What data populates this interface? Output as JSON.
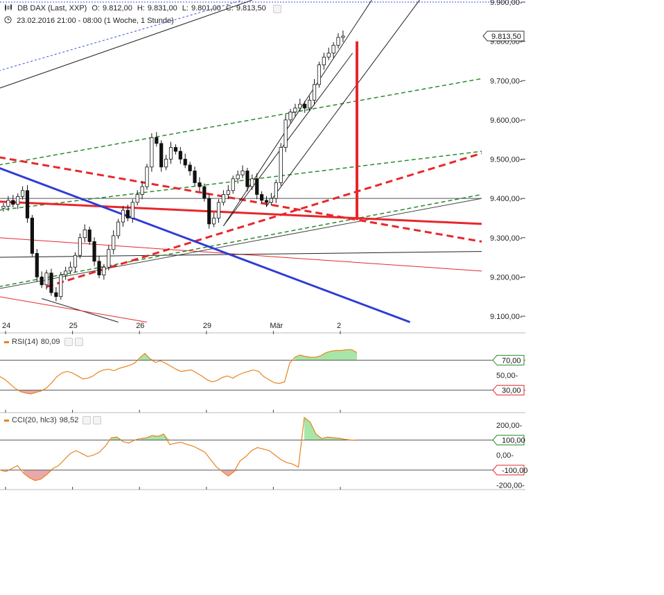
{
  "header": {
    "title": "DB DAX (Last, XXP)",
    "open_label": "O:",
    "open": "9.812,00",
    "high_label": "H:",
    "high": "9.831,00",
    "low_label": "L:",
    "low": "9.801,00",
    "close_label": "C:",
    "close": "9.813,50",
    "period": "23.02.2016 21:00 - 08:00 (1 Woche, 1 Stunde)"
  },
  "chart_data": [
    {
      "type": "candlestick",
      "title": "DB DAX (Last, XXP)",
      "ylim": [
        9080,
        9900
      ],
      "y_ticks": [
        "9.900,00",
        "9.800,00",
        "9.700,00",
        "9.600,00",
        "9.500,00",
        "9.400,00",
        "9.300,00",
        "9.200,00",
        "9.100,00"
      ],
      "y_tick_values": [
        9900,
        9800,
        9700,
        9600,
        9500,
        9400,
        9300,
        9200,
        9100
      ],
      "x_ticks": [
        "24",
        "25",
        "26",
        "29",
        "Mär",
        "2"
      ],
      "x_tick_bars": [
        0,
        14,
        28,
        42,
        56,
        70
      ],
      "last_price_label": "9.813,50",
      "last_price": 9813.5,
      "close_series": [
        9380,
        9395,
        9385,
        9405,
        9420,
        9350,
        9260,
        9200,
        9180,
        9210,
        9160,
        9150,
        9205,
        9215,
        9225,
        9255,
        9300,
        9320,
        9290,
        9240,
        9205,
        9225,
        9270,
        9305,
        9340,
        9370,
        9350,
        9390,
        9410,
        9430,
        9480,
        9555,
        9540,
        9480,
        9500,
        9530,
        9520,
        9500,
        9485,
        9470,
        9440,
        9430,
        9400,
        9335,
        9350,
        9390,
        9410,
        9420,
        9450,
        9460,
        9470,
        9430,
        9450,
        9410,
        9395,
        9390,
        9400,
        9440,
        9530,
        9600,
        9620,
        9630,
        9640,
        9630,
        9650,
        9690,
        9740,
        9760,
        9770,
        9790,
        9810,
        9813.5
      ],
      "grid": false,
      "legend": "none"
    },
    {
      "type": "line",
      "title": "RSI(14)",
      "current_value": "80,09",
      "ylim": [
        0,
        100
      ],
      "reference_levels": [
        "70,00",
        "50,00",
        "30,00"
      ],
      "reference_values": [
        70,
        50,
        30
      ],
      "values": [
        48,
        44,
        38,
        32,
        28,
        26,
        25,
        27,
        29,
        33,
        40,
        48,
        53,
        55,
        53,
        49,
        45,
        46,
        49,
        54,
        57,
        58,
        56,
        59,
        61,
        63,
        66,
        73,
        79,
        72,
        67,
        69,
        66,
        62,
        58,
        55,
        56,
        57,
        53,
        49,
        44,
        41,
        43,
        47,
        49,
        46,
        50,
        53,
        55,
        57,
        55,
        48,
        44,
        40,
        39,
        41,
        66,
        74,
        77,
        75,
        74,
        74,
        76,
        80,
        82,
        83,
        83,
        84,
        84,
        80.09
      ]
    },
    {
      "type": "line",
      "title": "CCI(20, hlc3)",
      "current_value": "98,52",
      "ylim": [
        -220,
        260
      ],
      "reference_levels": [
        "200,00",
        "100,00",
        "0,00",
        "-100,00",
        "-200,00"
      ],
      "reference_values": [
        200,
        100,
        0,
        -100,
        -200
      ],
      "values": [
        -100,
        -110,
        -90,
        -70,
        -120,
        -150,
        -170,
        -160,
        -130,
        -90,
        -70,
        -30,
        10,
        30,
        10,
        -10,
        0,
        20,
        60,
        115,
        120,
        90,
        80,
        100,
        110,
        115,
        130,
        125,
        140,
        70,
        80,
        85,
        70,
        60,
        40,
        20,
        -30,
        -80,
        -110,
        -140,
        -110,
        -40,
        -10,
        30,
        50,
        40,
        30,
        0,
        -30,
        -50,
        -60,
        -80,
        250,
        220,
        140,
        110,
        120,
        115,
        112,
        105,
        100,
        98.52
      ]
    }
  ],
  "rsi_panel": {
    "label": "RSI(14)",
    "value": "80,09",
    "badges": [
      "70,00",
      "30,00"
    ],
    "axis_label": "50,00"
  },
  "cci_panel": {
    "label": "CCI(20, hlc3)",
    "value": "98,52",
    "badges": [
      "100,00",
      "-100,00"
    ],
    "axis_labels": [
      "200,00",
      "0,00",
      "-200,00"
    ]
  },
  "colors": {
    "up": "#ffffff",
    "down": "#111111",
    "red_line": "#e8262a",
    "blue_line": "#2f3bd6",
    "green_dash": "#2a8a2a",
    "indicator": "#e8821e",
    "overbought_fill": "#9fe39f",
    "oversold_fill": "#e8a0a0",
    "grid_line": "#444444"
  },
  "icons": {
    "chart_type": "candlestick-icon",
    "period": "clock-icon"
  }
}
